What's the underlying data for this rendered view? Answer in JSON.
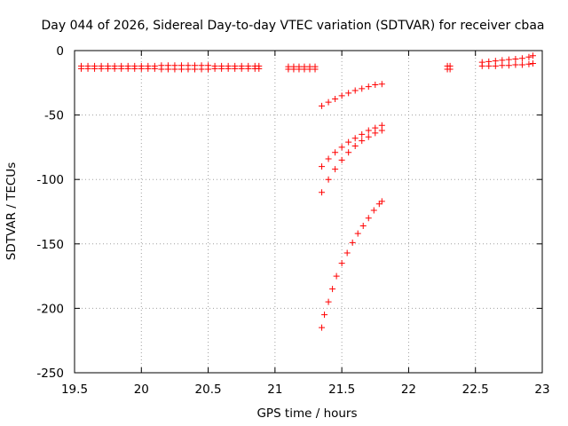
{
  "chart_data": {
    "type": "scatter",
    "title": "Day 044 of 2026, Sidereal Day-to-day VTEC variation (SDTVAR) for receiver cbaa",
    "xlabel": "GPS time / hours",
    "ylabel": "SDTVAR / TECUs",
    "xlim": [
      19.5,
      23
    ],
    "ylim": [
      -250,
      0
    ],
    "xticks": [
      "19.5",
      "20",
      "20.5",
      "21",
      "21.5",
      "22",
      "22.5",
      "23"
    ],
    "yticks": [
      "0",
      "-50",
      "-100",
      "-150",
      "-200",
      "-250"
    ],
    "grid": true,
    "marker": "plus",
    "color": "#ff0000",
    "series": [
      {
        "name": "seg-a",
        "points": [
          [
            19.55,
            -12
          ],
          [
            19.6,
            -12
          ],
          [
            19.65,
            -12
          ],
          [
            19.7,
            -12
          ],
          [
            19.75,
            -12
          ],
          [
            19.8,
            -12
          ],
          [
            19.85,
            -12
          ],
          [
            19.9,
            -12
          ],
          [
            19.95,
            -12
          ],
          [
            20,
            -12
          ],
          [
            20.05,
            -12
          ],
          [
            20.1,
            -12
          ],
          [
            20.15,
            -11.5
          ],
          [
            20.2,
            -11.5
          ],
          [
            20.25,
            -11.5
          ],
          [
            20.3,
            -11.5
          ],
          [
            20.35,
            -11.5
          ],
          [
            20.4,
            -11.5
          ],
          [
            20.45,
            -11.5
          ],
          [
            20.5,
            -11.5
          ],
          [
            20.55,
            -12
          ],
          [
            20.6,
            -12
          ],
          [
            20.65,
            -12
          ],
          [
            20.7,
            -12
          ],
          [
            20.75,
            -12
          ],
          [
            20.8,
            -12
          ],
          [
            20.85,
            -12
          ],
          [
            20.88,
            -12
          ]
        ]
      },
      {
        "name": "seg-b",
        "points": [
          [
            19.55,
            -14
          ],
          [
            19.6,
            -14
          ],
          [
            19.65,
            -14
          ],
          [
            19.7,
            -14
          ],
          [
            19.75,
            -14
          ],
          [
            19.8,
            -14
          ],
          [
            19.85,
            -14
          ],
          [
            19.9,
            -14
          ],
          [
            19.95,
            -14
          ],
          [
            20,
            -14
          ],
          [
            20.05,
            -14
          ],
          [
            20.1,
            -14
          ],
          [
            20.15,
            -14.5
          ],
          [
            20.2,
            -14.5
          ],
          [
            20.25,
            -14.5
          ],
          [
            20.3,
            -14.5
          ],
          [
            20.35,
            -14.5
          ],
          [
            20.4,
            -14.5
          ],
          [
            20.45,
            -14.5
          ],
          [
            20.5,
            -14.5
          ],
          [
            20.55,
            -14
          ],
          [
            20.6,
            -14
          ],
          [
            20.65,
            -14
          ],
          [
            20.7,
            -14
          ],
          [
            20.75,
            -14
          ],
          [
            20.8,
            -14
          ],
          [
            20.85,
            -14
          ],
          [
            20.88,
            -14
          ]
        ]
      },
      {
        "name": "seg-c",
        "points": [
          [
            21.1,
            -12.5
          ],
          [
            21.14,
            -12.5
          ],
          [
            21.18,
            -12.5
          ],
          [
            21.22,
            -12.5
          ],
          [
            21.26,
            -12.5
          ],
          [
            21.3,
            -12.5
          ],
          [
            21.1,
            -14.5
          ],
          [
            21.14,
            -14.5
          ],
          [
            21.18,
            -14.5
          ],
          [
            21.22,
            -14.5
          ],
          [
            21.26,
            -14.5
          ],
          [
            21.3,
            -14.5
          ]
        ]
      },
      {
        "name": "seg-d",
        "points": [
          [
            21.35,
            -43
          ],
          [
            21.4,
            -40
          ],
          [
            21.45,
            -37.5
          ],
          [
            21.5,
            -35
          ],
          [
            21.55,
            -33
          ],
          [
            21.6,
            -31
          ],
          [
            21.65,
            -29.5
          ],
          [
            21.7,
            -28
          ],
          [
            21.75,
            -26.5
          ],
          [
            21.8,
            -26
          ]
        ]
      },
      {
        "name": "seg-e",
        "points": [
          [
            21.35,
            -90
          ],
          [
            21.4,
            -84
          ],
          [
            21.45,
            -79
          ],
          [
            21.5,
            -75
          ],
          [
            21.55,
            -71
          ],
          [
            21.6,
            -68
          ],
          [
            21.65,
            -65
          ],
          [
            21.7,
            -62
          ],
          [
            21.75,
            -60
          ],
          [
            21.8,
            -58
          ]
        ]
      },
      {
        "name": "seg-f",
        "points": [
          [
            21.35,
            -110
          ],
          [
            21.4,
            -100
          ],
          [
            21.45,
            -92
          ],
          [
            21.5,
            -85
          ],
          [
            21.55,
            -79
          ],
          [
            21.6,
            -74
          ],
          [
            21.65,
            -70
          ],
          [
            21.7,
            -67
          ],
          [
            21.75,
            -64
          ],
          [
            21.8,
            -62
          ]
        ]
      },
      {
        "name": "seg-g",
        "points": [
          [
            21.35,
            -215
          ],
          [
            21.37,
            -205
          ],
          [
            21.4,
            -195
          ],
          [
            21.43,
            -185
          ],
          [
            21.46,
            -175
          ],
          [
            21.5,
            -165
          ],
          [
            21.54,
            -157
          ],
          [
            21.58,
            -149
          ],
          [
            21.62,
            -142
          ],
          [
            21.66,
            -136
          ],
          [
            21.7,
            -130
          ],
          [
            21.74,
            -124
          ],
          [
            21.78,
            -119
          ],
          [
            21.8,
            -117
          ]
        ]
      },
      {
        "name": "seg-h",
        "points": [
          [
            22.29,
            -12
          ],
          [
            22.31,
            -12
          ],
          [
            22.29,
            -14.5
          ],
          [
            22.31,
            -14.5
          ]
        ]
      },
      {
        "name": "seg-i",
        "points": [
          [
            22.55,
            -9
          ],
          [
            22.6,
            -8.5
          ],
          [
            22.65,
            -8
          ],
          [
            22.7,
            -7.5
          ],
          [
            22.75,
            -7
          ],
          [
            22.8,
            -6.5
          ],
          [
            22.85,
            -6
          ],
          [
            22.9,
            -5
          ],
          [
            22.93,
            -4
          ],
          [
            22.55,
            -12
          ],
          [
            22.6,
            -12
          ],
          [
            22.65,
            -12
          ],
          [
            22.7,
            -11.5
          ],
          [
            22.75,
            -11.5
          ],
          [
            22.8,
            -11
          ],
          [
            22.85,
            -11
          ],
          [
            22.9,
            -10.5
          ],
          [
            22.93,
            -10
          ]
        ]
      }
    ]
  }
}
